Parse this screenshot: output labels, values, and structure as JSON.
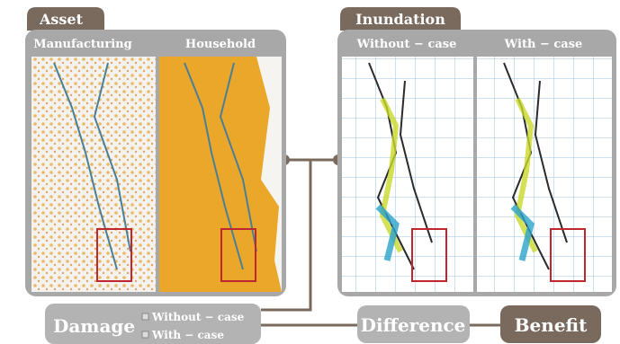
{
  "panels": [
    {
      "title": "Asset",
      "maps": [
        "Manufacturing",
        "Household"
      ]
    },
    {
      "title": "Inundation",
      "maps": [
        "Without − case",
        "With − case"
      ]
    }
  ],
  "flow": {
    "damage": {
      "label": "Damage",
      "legend": [
        "Without − case",
        "With − case"
      ]
    },
    "difference": "Difference",
    "benefit": "Benefit"
  }
}
